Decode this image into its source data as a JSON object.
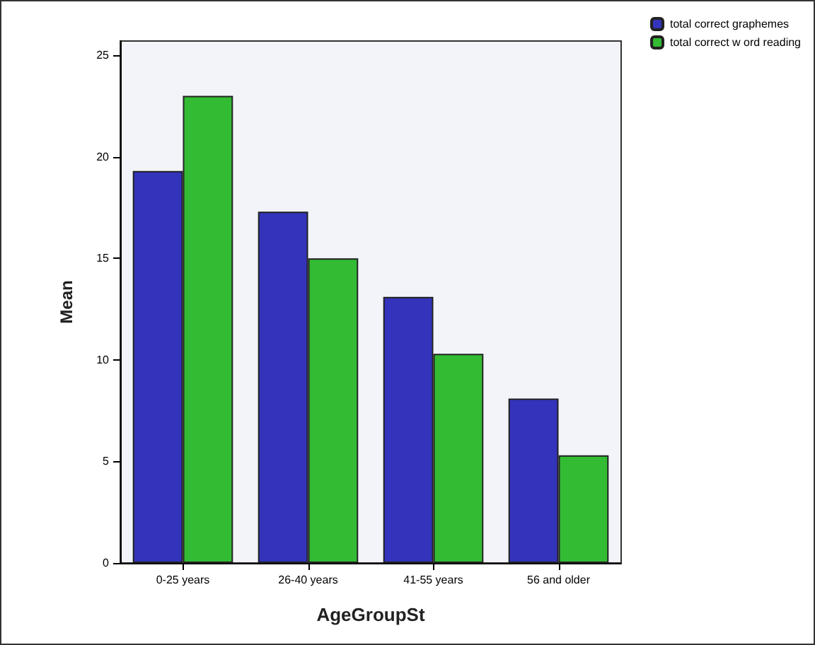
{
  "chart_data": {
    "type": "bar",
    "xlabel": "AgeGroupSt",
    "ylabel": "Mean",
    "categories": [
      "0-25 years",
      "26-40 years",
      "41-55 years",
      "56 and older"
    ],
    "series": [
      {
        "name": "total correct graphemes",
        "color": "#3333bb",
        "values": [
          19.3,
          17.3,
          13.1,
          8.1
        ]
      },
      {
        "name": "total correct w ord reading",
        "color": "#33bb33",
        "values": [
          23.0,
          15.0,
          10.3,
          5.3
        ]
      }
    ],
    "ylim": [
      0,
      25.7
    ],
    "yticks": [
      0,
      5,
      10,
      15,
      20,
      25
    ],
    "grid": false,
    "legend": "top right"
  }
}
